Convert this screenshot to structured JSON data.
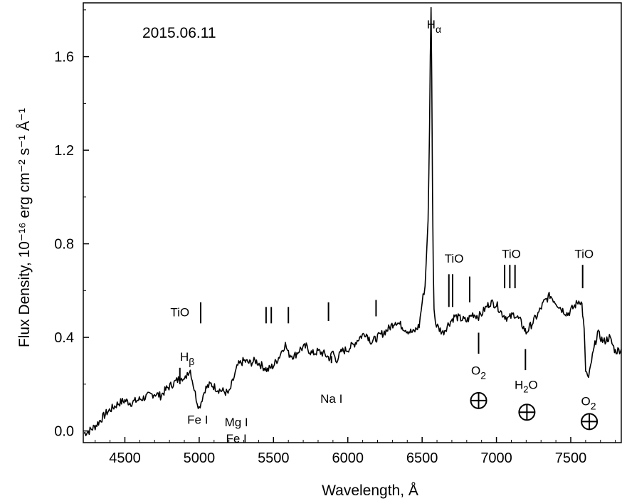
{
  "chart_data": {
    "type": "line",
    "title": "2015.06.11",
    "xlabel": "Wavelength, Å",
    "ylabel": "Flux Density, 10⁻¹⁶ erg cm⁻² s⁻¹ Å⁻¹",
    "xlim": [
      4220,
      7840
    ],
    "ylim": [
      -0.05,
      1.83
    ],
    "x_ticks": [
      4500,
      5000,
      5500,
      6000,
      6500,
      7000,
      7500
    ],
    "x_tick_labels": [
      "4500",
      "5000",
      "5500",
      "6000",
      "6500",
      "7000",
      "7500"
    ],
    "y_ticks": [
      0.0,
      0.4,
      0.8,
      1.2,
      1.6
    ],
    "y_tick_labels": [
      "0.0",
      "0.4",
      "0.8",
      "1.2",
      "1.6"
    ],
    "grid": false,
    "series": [
      {
        "x": [
          4225,
          4260,
          4300,
          4340,
          4380,
          4420,
          4460,
          4500,
          4540,
          4580,
          4620,
          4660,
          4700,
          4740,
          4780,
          4820,
          4860,
          4880,
          4900,
          4920,
          4940,
          4960,
          4980,
          5000,
          5020,
          5040,
          5080,
          5120,
          5160,
          5200,
          5230,
          5260,
          5300,
          5340,
          5380,
          5420,
          5460,
          5500,
          5540,
          5560,
          5580,
          5600,
          5640,
          5680,
          5720,
          5760,
          5800,
          5840,
          5880,
          5900,
          5920,
          5960,
          6000,
          6040,
          6080,
          6120,
          6160,
          6200,
          6240,
          6280,
          6320,
          6360,
          6400,
          6440,
          6480,
          6500,
          6520,
          6540,
          6550,
          6555,
          6560,
          6565,
          6570,
          6575,
          6580,
          6590,
          6610,
          6640,
          6680,
          6720,
          6760,
          6800,
          6840,
          6880,
          6900,
          6920,
          6960,
          7000,
          7040,
          7080,
          7120,
          7160,
          7200,
          7240,
          7280,
          7320,
          7360,
          7400,
          7440,
          7480,
          7520,
          7560,
          7575,
          7590,
          7600,
          7620,
          7640,
          7680,
          7720,
          7760,
          7800,
          7840
        ],
        "y": [
          -0.01,
          0.0,
          0.02,
          0.05,
          0.08,
          0.1,
          0.12,
          0.13,
          0.12,
          0.13,
          0.14,
          0.15,
          0.16,
          0.15,
          0.18,
          0.2,
          0.22,
          0.24,
          0.21,
          0.25,
          0.26,
          0.2,
          0.14,
          0.1,
          0.14,
          0.18,
          0.2,
          0.18,
          0.17,
          0.16,
          0.22,
          0.28,
          0.3,
          0.29,
          0.3,
          0.28,
          0.26,
          0.28,
          0.32,
          0.35,
          0.37,
          0.33,
          0.32,
          0.35,
          0.36,
          0.33,
          0.34,
          0.33,
          0.31,
          0.34,
          0.3,
          0.34,
          0.35,
          0.37,
          0.4,
          0.42,
          0.38,
          0.4,
          0.42,
          0.44,
          0.47,
          0.45,
          0.43,
          0.42,
          0.45,
          0.55,
          0.62,
          0.9,
          1.3,
          1.6,
          1.81,
          1.5,
          1.0,
          0.7,
          0.52,
          0.46,
          0.44,
          0.42,
          0.46,
          0.49,
          0.48,
          0.47,
          0.5,
          0.49,
          0.5,
          0.52,
          0.55,
          0.54,
          0.5,
          0.48,
          0.5,
          0.47,
          0.42,
          0.46,
          0.5,
          0.55,
          0.58,
          0.55,
          0.52,
          0.5,
          0.53,
          0.56,
          0.54,
          0.43,
          0.26,
          0.22,
          0.3,
          0.42,
          0.38,
          0.4,
          0.34,
          0.35
        ]
      }
    ],
    "annotations": [
      {
        "text": "Hα",
        "x": 6580,
        "y": 1.72
      },
      {
        "text": "Hβ",
        "x": 4920,
        "y": 0.3
      },
      {
        "text": "Fe I",
        "x": 4990,
        "y": 0.03
      },
      {
        "text": "Mg I",
        "x": 5250,
        "y": 0.02
      },
      {
        "text": "Fe I",
        "x": 5250,
        "y": -0.05
      },
      {
        "text": "Na I",
        "x": 5890,
        "y": 0.12
      },
      {
        "text": "TiO",
        "x": 4870,
        "y": 0.49
      },
      {
        "text": "TiO",
        "x": 6715,
        "y": 0.72
      },
      {
        "text": "TiO",
        "x": 7100,
        "y": 0.74
      },
      {
        "text": "TiO",
        "x": 7590,
        "y": 0.74
      },
      {
        "text": "O2",
        "x": 6880,
        "y": 0.24
      },
      {
        "text": "H2O",
        "x": 7200,
        "y": 0.18
      },
      {
        "text": "O2",
        "x": 7620,
        "y": 0.11
      }
    ],
    "tio_marks_x": [
      5010,
      5450,
      5485,
      5600,
      5870,
      6190,
      6680,
      6705,
      6820,
      7055,
      7090,
      7125,
      7580
    ],
    "other_marks": [
      {
        "x": 4870,
        "y1": 0.2,
        "y2": 0.27
      },
      {
        "x": 5890,
        "y1": 0.29,
        "y2": 0.32
      },
      {
        "x": 6880,
        "y1": 0.33,
        "y2": 0.42
      },
      {
        "x": 7195,
        "y1": 0.26,
        "y2": 0.35
      }
    ],
    "earth_symbols_x": [
      6880,
      7205,
      7625
    ],
    "earth_symbols_y": [
      0.13,
      0.08,
      0.04
    ]
  }
}
